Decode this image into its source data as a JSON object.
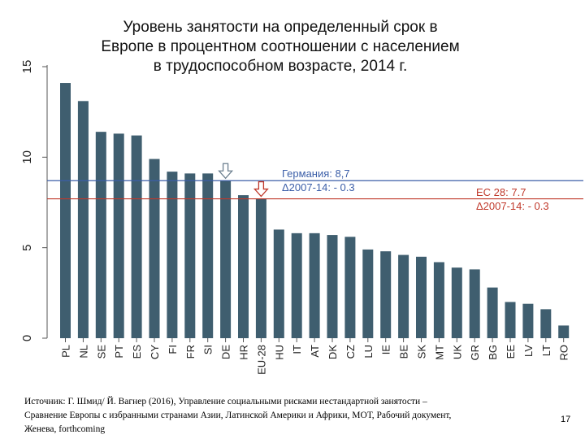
{
  "title_lines": [
    "Уровень занятости на определенный срок в",
    "Европе в процентном соотношении с населением",
    "в трудоспособном возрасте, 2014 г."
  ],
  "source_lines": [
    "Источник: Г. Шмид/ Й. Вагнер (2016), Управление социальными рисками нестандартной занятости –",
    "Сравнение Европы с избранными странами Азии, Латинской Америки и Африки, МОТ, Рабочий документ,",
    "Женева, forthcoming"
  ],
  "page_number": "17",
  "annotations": {
    "germany_label": "Германия: 8,7",
    "germany_delta": "Δ2007-14: - 0.3",
    "eu_label": "EC 28: 7.7",
    "eu_delta": "Δ2007-14: - 0.3"
  },
  "colors": {
    "bar": "#3f5e6f",
    "germany_line": "#3b5ea8",
    "eu_line": "#c0392b",
    "axis": "#555555"
  },
  "chart_data": {
    "type": "bar",
    "title": "Уровень занятости на определенный срок в Европе в процентном соотношении с населением в трудоспособном возрасте, 2014 г.",
    "xlabel": "",
    "ylabel": "",
    "ylim": [
      0,
      15
    ],
    "yticks": [
      0,
      5,
      10,
      15
    ],
    "categories": [
      "PL",
      "NL",
      "SE",
      "PT",
      "ES",
      "CY",
      "FI",
      "FR",
      "SI",
      "DE",
      "HR",
      "EU-28",
      "HU",
      "IT",
      "AT",
      "DK",
      "CZ",
      "LU",
      "IE",
      "BE",
      "SK",
      "MT",
      "UK",
      "GR",
      "BG",
      "EE",
      "LV",
      "LT",
      "RO"
    ],
    "values": [
      14.1,
      13.1,
      11.4,
      11.3,
      11.2,
      9.9,
      9.2,
      9.1,
      9.1,
      8.7,
      7.9,
      7.7,
      6.0,
      5.8,
      5.8,
      5.7,
      5.6,
      4.9,
      4.8,
      4.6,
      4.5,
      4.2,
      3.9,
      3.8,
      2.8,
      2.0,
      1.9,
      1.6,
      0.7
    ],
    "reference_lines": [
      {
        "name": "Германия",
        "value": 8.7
      },
      {
        "name": "EC 28",
        "value": 7.7
      }
    ],
    "marked_categories": [
      "DE",
      "EU-28"
    ]
  }
}
